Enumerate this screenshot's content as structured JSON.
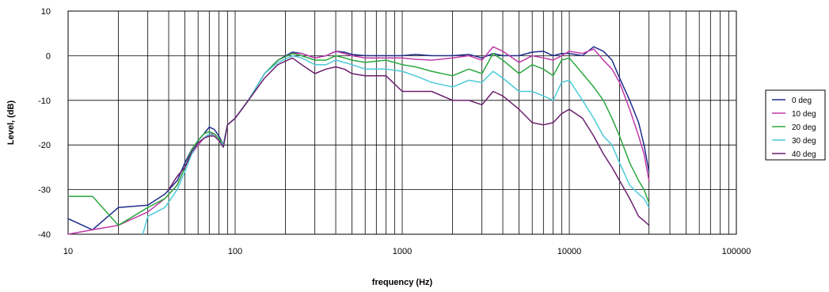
{
  "chart_data": {
    "type": "line",
    "xlabel": "frequency (Hz)",
    "ylabel": "Level, (dB)",
    "xscale": "log",
    "xlim": [
      10,
      100000
    ],
    "ylim": [
      -40,
      10
    ],
    "x_ticks": [
      10,
      100,
      1000,
      10000,
      100000
    ],
    "x_tick_labels": [
      "10",
      "100",
      "1000",
      "10000",
      "100000"
    ],
    "y_ticks": [
      10,
      0,
      -10,
      -20,
      -30,
      -40
    ],
    "y_tick_labels": [
      "10",
      "0",
      "-10",
      "-20",
      "-30",
      "-40"
    ],
    "grid": true,
    "legend_position": "right",
    "series": [
      {
        "name": "0 deg",
        "color": "#1f2d8a",
        "points": [
          [
            10,
            -36.5
          ],
          [
            14,
            -39
          ],
          [
            20,
            -34
          ],
          [
            30,
            -33.5
          ],
          [
            38,
            -31
          ],
          [
            45,
            -28
          ],
          [
            50,
            -24
          ],
          [
            55,
            -21
          ],
          [
            60,
            -19
          ],
          [
            65,
            -17.5
          ],
          [
            70,
            -16
          ],
          [
            75,
            -16.5
          ],
          [
            80,
            -18
          ],
          [
            85,
            -20
          ],
          [
            90,
            -15.5
          ],
          [
            100,
            -14
          ],
          [
            120,
            -10
          ],
          [
            150,
            -4
          ],
          [
            180,
            -1
          ],
          [
            220,
            0.8
          ],
          [
            250,
            0.5
          ],
          [
            300,
            -0.5
          ],
          [
            350,
            0
          ],
          [
            400,
            1
          ],
          [
            450,
            0.8
          ],
          [
            500,
            0.3
          ],
          [
            600,
            0
          ],
          [
            800,
            0
          ],
          [
            1000,
            0
          ],
          [
            1200,
            0.3
          ],
          [
            1500,
            0
          ],
          [
            2000,
            0
          ],
          [
            2500,
            0.3
          ],
          [
            3000,
            -0.5
          ],
          [
            3500,
            0.5
          ],
          [
            4000,
            0
          ],
          [
            5000,
            0
          ],
          [
            6000,
            0.8
          ],
          [
            7000,
            1
          ],
          [
            8000,
            0
          ],
          [
            9000,
            0.5
          ],
          [
            10000,
            0.5
          ],
          [
            12000,
            0
          ],
          [
            14000,
            2
          ],
          [
            16000,
            1
          ],
          [
            18000,
            -1
          ],
          [
            20000,
            -5
          ],
          [
            23000,
            -10
          ],
          [
            26000,
            -15
          ],
          [
            28000,
            -20
          ],
          [
            30000,
            -26
          ]
        ]
      },
      {
        "name": "10 deg",
        "color": "#c03aa8",
        "points": [
          [
            10,
            -40
          ],
          [
            14,
            -39
          ],
          [
            20,
            -38
          ],
          [
            30,
            -35
          ],
          [
            38,
            -32
          ],
          [
            45,
            -29
          ],
          [
            50,
            -25
          ],
          [
            55,
            -22
          ],
          [
            60,
            -20
          ],
          [
            65,
            -18.5
          ],
          [
            70,
            -17.5
          ],
          [
            75,
            -17.5
          ],
          [
            80,
            -18.5
          ],
          [
            85,
            -20
          ],
          [
            90,
            -15.5
          ],
          [
            100,
            -14
          ],
          [
            120,
            -10
          ],
          [
            150,
            -4
          ],
          [
            180,
            -1
          ],
          [
            220,
            0.5
          ],
          [
            250,
            0.5
          ],
          [
            300,
            -0.5
          ],
          [
            350,
            0
          ],
          [
            400,
            1
          ],
          [
            450,
            0.5
          ],
          [
            500,
            0
          ],
          [
            600,
            -0.5
          ],
          [
            800,
            -0.5
          ],
          [
            1000,
            -0.5
          ],
          [
            1200,
            -0.8
          ],
          [
            1500,
            -1
          ],
          [
            2000,
            -0.5
          ],
          [
            2500,
            0
          ],
          [
            3000,
            -1
          ],
          [
            3500,
            2
          ],
          [
            4000,
            1
          ],
          [
            5000,
            -1.5
          ],
          [
            6000,
            0
          ],
          [
            7000,
            -0.5
          ],
          [
            8000,
            -1
          ],
          [
            9000,
            0
          ],
          [
            10000,
            1
          ],
          [
            12000,
            0.5
          ],
          [
            14000,
            1.5
          ],
          [
            16000,
            -1
          ],
          [
            18000,
            -3
          ],
          [
            20000,
            -6
          ],
          [
            23000,
            -12
          ],
          [
            26000,
            -18
          ],
          [
            28000,
            -22
          ],
          [
            30000,
            -28
          ]
        ]
      },
      {
        "name": "20 deg",
        "color": "#2ba83f",
        "points": [
          [
            10,
            -31.5
          ],
          [
            14,
            -31.5
          ],
          [
            20,
            -38
          ],
          [
            30,
            -34
          ],
          [
            38,
            -32
          ],
          [
            45,
            -29
          ],
          [
            50,
            -25
          ],
          [
            55,
            -21
          ],
          [
            60,
            -19
          ],
          [
            65,
            -17.5
          ],
          [
            70,
            -17
          ],
          [
            75,
            -17.5
          ],
          [
            80,
            -18.5
          ],
          [
            85,
            -20
          ],
          [
            90,
            -15.5
          ],
          [
            100,
            -14
          ],
          [
            120,
            -10
          ],
          [
            150,
            -4
          ],
          [
            180,
            -1
          ],
          [
            220,
            0.5
          ],
          [
            250,
            0
          ],
          [
            300,
            -1
          ],
          [
            350,
            -1
          ],
          [
            400,
            0
          ],
          [
            450,
            -0.5
          ],
          [
            500,
            -1
          ],
          [
            600,
            -1.5
          ],
          [
            800,
            -1
          ],
          [
            1000,
            -2
          ],
          [
            1200,
            -2.5
          ],
          [
            1500,
            -3.5
          ],
          [
            2000,
            -4.5
          ],
          [
            2500,
            -3
          ],
          [
            3000,
            -4
          ],
          [
            3500,
            0.5
          ],
          [
            4000,
            -1
          ],
          [
            5000,
            -4
          ],
          [
            6000,
            -2
          ],
          [
            7000,
            -3
          ],
          [
            8000,
            -4.5
          ],
          [
            9000,
            -1
          ],
          [
            10000,
            -0.5
          ],
          [
            12000,
            -4
          ],
          [
            14000,
            -7
          ],
          [
            16000,
            -10
          ],
          [
            18000,
            -14
          ],
          [
            20000,
            -18
          ],
          [
            23000,
            -24
          ],
          [
            26000,
            -28
          ],
          [
            28000,
            -30
          ],
          [
            30000,
            -33
          ]
        ]
      },
      {
        "name": "30 deg",
        "color": "#4ccad8",
        "points": [
          [
            28,
            -40
          ],
          [
            30,
            -36
          ],
          [
            38,
            -34
          ],
          [
            45,
            -30
          ],
          [
            50,
            -26
          ],
          [
            55,
            -22
          ],
          [
            60,
            -19.5
          ],
          [
            65,
            -18.5
          ],
          [
            70,
            -17.5
          ],
          [
            75,
            -18
          ],
          [
            80,
            -19
          ],
          [
            85,
            -20
          ],
          [
            90,
            -15.5
          ],
          [
            100,
            -14
          ],
          [
            120,
            -10
          ],
          [
            150,
            -4
          ],
          [
            180,
            -1.5
          ],
          [
            220,
            0
          ],
          [
            250,
            -0.5
          ],
          [
            300,
            -2
          ],
          [
            350,
            -2
          ],
          [
            400,
            -1
          ],
          [
            450,
            -1.5
          ],
          [
            500,
            -2
          ],
          [
            600,
            -3
          ],
          [
            800,
            -3
          ],
          [
            1000,
            -3.5
          ],
          [
            1200,
            -4.5
          ],
          [
            1500,
            -6
          ],
          [
            2000,
            -7
          ],
          [
            2500,
            -5.5
          ],
          [
            3000,
            -6
          ],
          [
            3500,
            -3.5
          ],
          [
            4000,
            -5
          ],
          [
            5000,
            -8
          ],
          [
            6000,
            -8
          ],
          [
            7000,
            -9
          ],
          [
            8000,
            -10
          ],
          [
            9000,
            -6
          ],
          [
            10000,
            -5.5
          ],
          [
            12000,
            -10
          ],
          [
            14000,
            -14
          ],
          [
            16000,
            -18
          ],
          [
            18000,
            -20
          ],
          [
            20000,
            -24
          ],
          [
            23000,
            -29
          ],
          [
            26000,
            -31
          ],
          [
            28000,
            -32
          ],
          [
            30000,
            -34
          ]
        ]
      },
      {
        "name": "40 deg",
        "color": "#6b1f6e",
        "points": [
          [
            40,
            -30
          ],
          [
            45,
            -27
          ],
          [
            50,
            -25
          ],
          [
            55,
            -21.5
          ],
          [
            60,
            -19.5
          ],
          [
            65,
            -18.5
          ],
          [
            70,
            -18
          ],
          [
            75,
            -18
          ],
          [
            80,
            -19
          ],
          [
            85,
            -20.5
          ],
          [
            90,
            -15.5
          ],
          [
            100,
            -14
          ],
          [
            120,
            -10
          ],
          [
            150,
            -5
          ],
          [
            180,
            -2
          ],
          [
            220,
            -0.5
          ],
          [
            250,
            -2
          ],
          [
            300,
            -4
          ],
          [
            350,
            -3
          ],
          [
            400,
            -2.5
          ],
          [
            450,
            -3
          ],
          [
            500,
            -4
          ],
          [
            600,
            -4.5
          ],
          [
            800,
            -4.5
          ],
          [
            1000,
            -8
          ],
          [
            1200,
            -8
          ],
          [
            1500,
            -8
          ],
          [
            2000,
            -10
          ],
          [
            2500,
            -10
          ],
          [
            3000,
            -11
          ],
          [
            3500,
            -8
          ],
          [
            4000,
            -9
          ],
          [
            5000,
            -12
          ],
          [
            6000,
            -15
          ],
          [
            7000,
            -15.5
          ],
          [
            8000,
            -15
          ],
          [
            9000,
            -13
          ],
          [
            10000,
            -12
          ],
          [
            12000,
            -14
          ],
          [
            14000,
            -18
          ],
          [
            16000,
            -22
          ],
          [
            18000,
            -25
          ],
          [
            20000,
            -28
          ],
          [
            23000,
            -32
          ],
          [
            26000,
            -36
          ],
          [
            28000,
            -37
          ],
          [
            30000,
            -38
          ]
        ]
      }
    ]
  }
}
